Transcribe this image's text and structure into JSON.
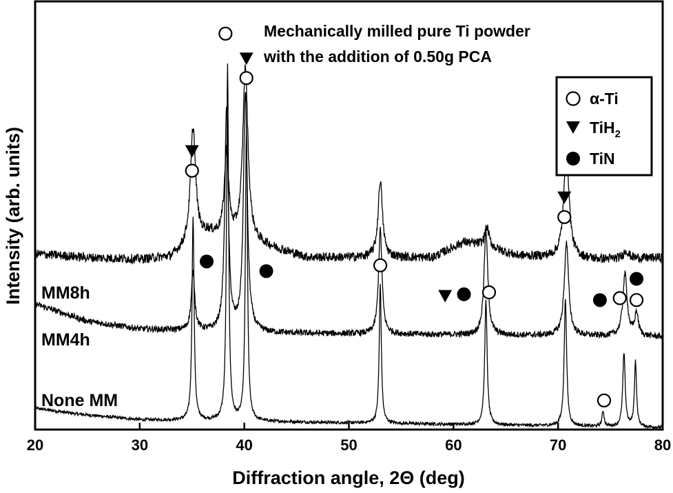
{
  "chart_data": {
    "type": "line",
    "title": [
      "Mechanically milled pure Ti powder",
      "with the addition of 0.50g PCA"
    ],
    "xlabel": "Diffraction angle, 2Θ (deg)",
    "ylabel": "Intensity (arb. units)",
    "xlim": [
      20,
      80
    ],
    "xticks": [
      "20",
      "30",
      "40",
      "50",
      "60",
      "70",
      "80"
    ],
    "yticks": "none",
    "series": [
      {
        "name": "None MM",
        "baseline": 0.0,
        "background": [
          [
            20,
            0.05
          ],
          [
            24,
            0.035
          ],
          [
            30,
            0.02
          ],
          [
            80,
            0.0
          ]
        ],
        "peaks": [
          {
            "center": 35.1,
            "height": 0.53,
            "width": 0.12
          },
          {
            "center": 38.4,
            "height": 0.92,
            "width": 0.12
          },
          {
            "center": 40.2,
            "height": 0.76,
            "width": 0.12
          },
          {
            "center": 53.0,
            "height": 0.36,
            "width": 0.12
          },
          {
            "center": 63.1,
            "height": 0.32,
            "width": 0.14
          },
          {
            "center": 70.7,
            "height": 0.33,
            "width": 0.14
          },
          {
            "center": 74.3,
            "height": 0.04,
            "width": 0.12
          },
          {
            "center": 76.3,
            "height": 0.19,
            "width": 0.14
          },
          {
            "center": 77.4,
            "height": 0.17,
            "width": 0.12
          }
        ]
      },
      {
        "name": "MM4h",
        "baseline": 0.19,
        "background": [
          [
            20,
            0.32
          ],
          [
            25,
            0.275
          ],
          [
            30,
            0.255
          ],
          [
            40,
            0.245
          ],
          [
            60,
            0.24
          ],
          [
            80,
            0.235
          ]
        ],
        "peaks": [
          {
            "center": 35.1,
            "height": 0.15,
            "width": 0.2
          },
          {
            "center": 38.3,
            "height": 0.58,
            "width": 0.2
          },
          {
            "center": 40.1,
            "height": 0.62,
            "width": 0.22
          },
          {
            "center": 53.0,
            "height": 0.27,
            "width": 0.2
          },
          {
            "center": 63.1,
            "height": 0.27,
            "width": 0.22
          },
          {
            "center": 70.8,
            "height": 0.24,
            "width": 0.25
          },
          {
            "center": 76.4,
            "height": 0.16,
            "width": 0.25
          },
          {
            "center": 77.5,
            "height": 0.06,
            "width": 0.2
          }
        ]
      },
      {
        "name": "MM8h",
        "baseline": 0.4,
        "background": [
          [
            20,
            0.45
          ],
          [
            25,
            0.44
          ],
          [
            30,
            0.435
          ],
          [
            33,
            0.44
          ],
          [
            36.5,
            0.5
          ],
          [
            42,
            0.47
          ],
          [
            46,
            0.44
          ],
          [
            58,
            0.44
          ],
          [
            61,
            0.48
          ],
          [
            63,
            0.47
          ],
          [
            66,
            0.445
          ],
          [
            74,
            0.435
          ],
          [
            80,
            0.44
          ]
        ],
        "peaks": [
          {
            "center": 35.1,
            "height": 0.3,
            "width": 0.3
          },
          {
            "center": 38.3,
            "height": 0.22,
            "width": 0.25
          },
          {
            "center": 40.1,
            "height": 0.45,
            "width": 0.3
          },
          {
            "center": 53.0,
            "height": 0.2,
            "width": 0.25
          },
          {
            "center": 63.2,
            "height": 0.05,
            "width": 0.25
          },
          {
            "center": 70.8,
            "height": 0.28,
            "width": 0.3
          },
          {
            "center": 76.5,
            "height": 0.02,
            "width": 0.3
          }
        ]
      }
    ],
    "markers": [
      {
        "type": "alpha-Ti",
        "x": 38.2,
        "y": 1.02
      },
      {
        "type": "TiH2",
        "x": 40.2,
        "y": 0.955
      },
      {
        "type": "alpha-Ti",
        "x": 40.2,
        "y": 0.905
      },
      {
        "type": "TiH2",
        "x": 35.0,
        "y": 0.715
      },
      {
        "type": "alpha-Ti",
        "x": 35.0,
        "y": 0.665
      },
      {
        "type": "TiH2",
        "x": 70.6,
        "y": 0.595
      },
      {
        "type": "alpha-Ti",
        "x": 70.6,
        "y": 0.545
      },
      {
        "type": "TiN",
        "x": 36.4,
        "y": 0.43
      },
      {
        "type": "TiN",
        "x": 42.1,
        "y": 0.405
      },
      {
        "type": "alpha-Ti",
        "x": 53.0,
        "y": 0.42
      },
      {
        "type": "TiH2",
        "x": 59.2,
        "y": 0.34
      },
      {
        "type": "TiN",
        "x": 61.0,
        "y": 0.345
      },
      {
        "type": "alpha-Ti",
        "x": 63.4,
        "y": 0.35
      },
      {
        "type": "TiN",
        "x": 74.0,
        "y": 0.33
      },
      {
        "type": "alpha-Ti",
        "x": 75.9,
        "y": 0.335
      },
      {
        "type": "alpha-Ti",
        "x": 77.5,
        "y": 0.33
      },
      {
        "type": "TiN",
        "x": 77.5,
        "y": 0.385
      },
      {
        "type": "alpha-Ti",
        "x": 74.4,
        "y": 0.07
      }
    ],
    "legend": {
      "placement": "top-right",
      "entries": [
        {
          "type": "alpha-Ti",
          "label": "α-Ti"
        },
        {
          "type": "TiH2",
          "label": "TiH",
          "subscript": "2"
        },
        {
          "type": "TiN",
          "label": "TiN"
        }
      ]
    }
  }
}
